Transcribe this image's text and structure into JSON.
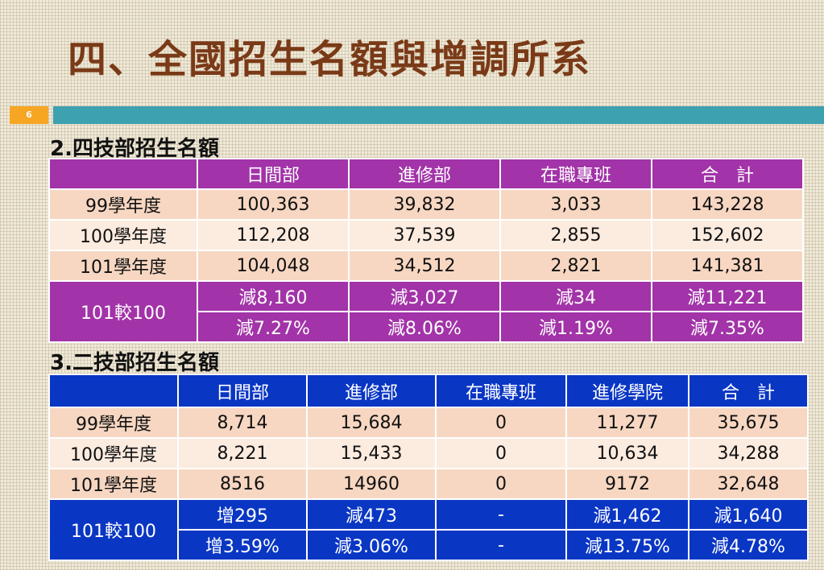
{
  "page": {
    "title": "四、全國招生名額與增調所系",
    "page_number": "6",
    "accent_colors": {
      "orange": "#f6a623",
      "teal": "#3da1b0",
      "title": "#7a3a17",
      "purple": "#a233a8",
      "blue": "#0a36c4"
    }
  },
  "section2": {
    "title": "2.四技部招生名額",
    "headers": [
      "",
      "日間部",
      "進修部",
      "在職專班",
      "合　計"
    ],
    "rows": [
      {
        "label": "99學年度",
        "values": [
          "100,363",
          "39,832",
          "3,033",
          "143,228"
        ]
      },
      {
        "label": "100學年度",
        "values": [
          "112,208",
          "37,539",
          "2,855",
          "152,602"
        ]
      },
      {
        "label": "101學年度",
        "values": [
          "104,048",
          "34,512",
          "2,821",
          "141,381"
        ]
      }
    ],
    "compare_label": "101較100",
    "compare_rows": [
      [
        "減8,160",
        "減3,027",
        "減34",
        "減11,221"
      ],
      [
        "減7.27%",
        "減8.06%",
        "減1.19%",
        "減7.35%"
      ]
    ]
  },
  "section3": {
    "title": "3.二技部招生名額",
    "headers": [
      "",
      "日間部",
      "進修部",
      "在職專班",
      "進修學院",
      "合　計"
    ],
    "rows": [
      {
        "label": "99學年度",
        "values": [
          "8,714",
          "15,684",
          "0",
          "11,277",
          "35,675"
        ]
      },
      {
        "label": "100學年度",
        "values": [
          "8,221",
          "15,433",
          "0",
          "10,634",
          "34,288"
        ]
      },
      {
        "label": "101學年度",
        "values": [
          "8516",
          "14960",
          "0",
          "9172",
          "32,648"
        ]
      }
    ],
    "compare_label": "101較100",
    "compare_rows": [
      [
        "增295",
        "減473",
        "-",
        "減1,462",
        "減1,640"
      ],
      [
        "增3.59%",
        "減3.06%",
        "-",
        "減13.75%",
        "減4.78%"
      ]
    ]
  }
}
